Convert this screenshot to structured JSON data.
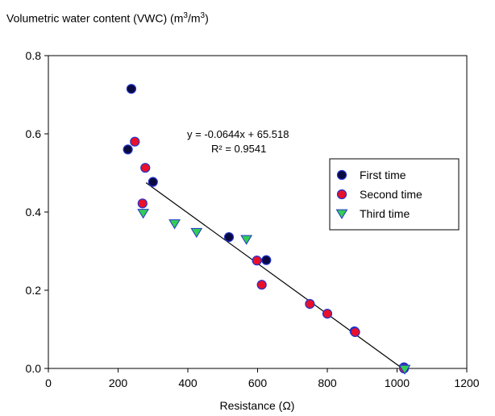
{
  "chart_data": {
    "type": "scatter",
    "ylabel": "Volumetric water content (VWC) (m3/m3)",
    "ylabel_parts": {
      "main": "Volumetric water content (VWC) (m",
      "sup1": "3",
      "mid": "/m",
      "sup2": "3",
      "end": ")"
    },
    "xlabel": "Resistance (Ω)",
    "xlim": [
      0,
      1200
    ],
    "ylim": [
      0.0,
      0.8
    ],
    "xticks": [
      0,
      200,
      400,
      600,
      800,
      1000,
      1200
    ],
    "xtick_labels": [
      "0",
      "200",
      "400",
      "600",
      "800",
      "1000",
      "1200"
    ],
    "yticks": [
      0.0,
      0.2,
      0.4,
      0.6,
      0.8
    ],
    "ytick_labels": [
      "0.0",
      "0.2",
      "0.4",
      "0.6",
      "0.8"
    ],
    "grid": false,
    "legend_position": "right",
    "series": [
      {
        "name": "First time",
        "marker": "circle",
        "color": "#0a0a40",
        "edge": "#2233cc",
        "points": [
          [
            228,
            0.56
          ],
          [
            238,
            0.715
          ],
          [
            300,
            0.477
          ],
          [
            518,
            0.336
          ],
          [
            625,
            0.277
          ],
          [
            878,
            0.095
          ],
          [
            1020,
            0.003
          ]
        ]
      },
      {
        "name": "Second time",
        "marker": "circle",
        "color": "#e8102a",
        "edge": "#2233cc",
        "points": [
          [
            248,
            0.58
          ],
          [
            270,
            0.422
          ],
          [
            278,
            0.513
          ],
          [
            598,
            0.276
          ],
          [
            612,
            0.214
          ],
          [
            750,
            0.165
          ],
          [
            800,
            0.14
          ],
          [
            880,
            0.093
          ],
          [
            1020,
            0.0
          ]
        ]
      },
      {
        "name": "Third time",
        "marker": "triangle-down",
        "color": "#33cc55",
        "edge": "#2233cc",
        "points": [
          [
            272,
            0.397
          ],
          [
            362,
            0.37
          ],
          [
            425,
            0.348
          ],
          [
            568,
            0.33
          ],
          [
            1022,
            -0.002
          ]
        ]
      }
    ],
    "trendline": {
      "x": [
        280,
        1020
      ],
      "y": [
        0.475,
        -0.003
      ]
    },
    "equation": "y = -0.0644x + 65.518",
    "r_squared": "R² = 0.9541"
  }
}
